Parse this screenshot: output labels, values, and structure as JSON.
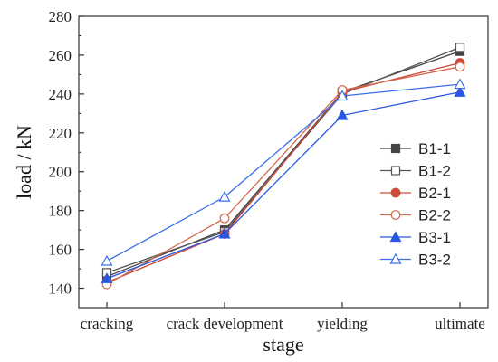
{
  "chart_data": {
    "type": "line",
    "title": "",
    "xlabel": "stage",
    "ylabel": "load / kN",
    "categories": [
      "cracking",
      "crack development",
      "yielding",
      "ultimate"
    ],
    "ylim": [
      130,
      280
    ],
    "yticks": [
      140,
      160,
      180,
      200,
      220,
      240,
      260,
      280
    ],
    "grid": false,
    "legend_position": "right",
    "series": [
      {
        "name": "B1-1",
        "color": "#444444",
        "marker": "square-filled",
        "values": [
          146,
          170,
          241,
          262
        ]
      },
      {
        "name": "B1-2",
        "color": "#555555",
        "marker": "square-open",
        "values": [
          148,
          169,
          240,
          264
        ]
      },
      {
        "name": "B2-1",
        "color": "#cc4a3c",
        "marker": "circle-filled",
        "values": [
          143,
          168,
          241,
          256
        ]
      },
      {
        "name": "B2-2",
        "color": "#d2694f",
        "marker": "circle-open",
        "values": [
          142,
          176,
          242,
          254
        ]
      },
      {
        "name": "B3-1",
        "color": "#2a57e0",
        "marker": "triangle-filled",
        "values": [
          145,
          168,
          229,
          241
        ]
      },
      {
        "name": "B3-2",
        "color": "#3b6fea",
        "marker": "triangle-open",
        "values": [
          154,
          187,
          239,
          245
        ]
      }
    ]
  }
}
